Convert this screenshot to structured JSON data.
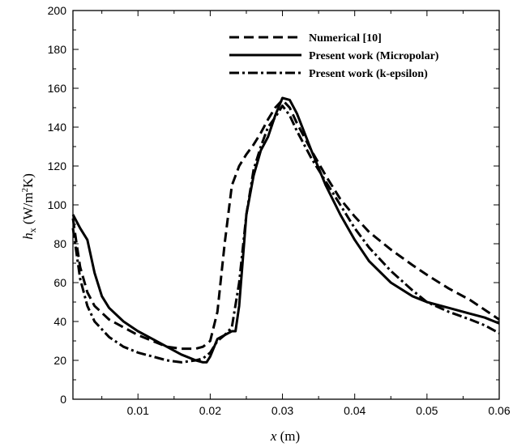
{
  "chart_data": {
    "type": "line",
    "xlabel": {
      "var": "x",
      "unit": " (m)"
    },
    "ylabel": {
      "var": "h",
      "sub": "x",
      "unit_pre": " (W/m",
      "sup": "2",
      "unit_post": "K)"
    },
    "xlim": [
      0.001,
      0.06
    ],
    "ylim": [
      0,
      200
    ],
    "x_ticks": [
      0.01,
      0.02,
      0.03,
      0.04,
      0.05,
      0.06
    ],
    "x_tick_labels": [
      "0.01",
      "0.02",
      "0.03",
      "0.04",
      "0.05",
      "0.06"
    ],
    "y_ticks": [
      0,
      20,
      40,
      60,
      80,
      100,
      120,
      140,
      160,
      180,
      200
    ],
    "y_tick_labels": [
      "0",
      "20",
      "40",
      "60",
      "80",
      "100",
      "120",
      "140",
      "160",
      "180",
      "200"
    ],
    "grid": false,
    "legend_position": "top-right",
    "series": [
      {
        "name": "Numerical [10]",
        "style": "dashed",
        "x": [
          0.001,
          0.0015,
          0.002,
          0.003,
          0.004,
          0.006,
          0.008,
          0.01,
          0.012,
          0.014,
          0.016,
          0.018,
          0.019,
          0.02,
          0.021,
          0.022,
          0.023,
          0.024,
          0.025,
          0.026,
          0.027,
          0.028,
          0.029,
          0.03,
          0.031,
          0.032,
          0.034,
          0.036,
          0.038,
          0.04,
          0.042,
          0.045,
          0.048,
          0.05,
          0.053,
          0.056,
          0.058,
          0.06
        ],
        "y": [
          93,
          80,
          68,
          55,
          48,
          41,
          37,
          33,
          30,
          27,
          26,
          26,
          27,
          30,
          45,
          80,
          110,
          120,
          126,
          131,
          137,
          144,
          150,
          154,
          150,
          142,
          128,
          115,
          103,
          94,
          86,
          77,
          69,
          64,
          57,
          51,
          46,
          41
        ]
      },
      {
        "name": "Present work (Micropolar)",
        "style": "solid",
        "x": [
          0.001,
          0.002,
          0.003,
          0.004,
          0.005,
          0.006,
          0.008,
          0.01,
          0.012,
          0.014,
          0.016,
          0.018,
          0.019,
          0.0195,
          0.02,
          0.021,
          0.022,
          0.023,
          0.0235,
          0.024,
          0.025,
          0.026,
          0.027,
          0.028,
          0.029,
          0.03,
          0.031,
          0.032,
          0.034,
          0.036,
          0.038,
          0.04,
          0.042,
          0.045,
          0.048,
          0.05,
          0.053,
          0.056,
          0.058,
          0.06
        ],
        "y": [
          95,
          88,
          82,
          65,
          53,
          47,
          40,
          35,
          31,
          27,
          23,
          20,
          19,
          19,
          22,
          31,
          33,
          35,
          35,
          48,
          95,
          115,
          128,
          135,
          146,
          155,
          154,
          147,
          128,
          110,
          95,
          82,
          71,
          60,
          53,
          50,
          47,
          44,
          42,
          39
        ]
      },
      {
        "name": "Present work (k-epsilon)",
        "style": "dashdot",
        "x": [
          0.001,
          0.002,
          0.003,
          0.004,
          0.005,
          0.006,
          0.008,
          0.01,
          0.012,
          0.014,
          0.016,
          0.018,
          0.019,
          0.02,
          0.021,
          0.022,
          0.023,
          0.024,
          0.025,
          0.026,
          0.027,
          0.028,
          0.029,
          0.03,
          0.031,
          0.032,
          0.034,
          0.036,
          0.038,
          0.04,
          0.042,
          0.045,
          0.048,
          0.05,
          0.053,
          0.056,
          0.058,
          0.06
        ],
        "y": [
          88,
          62,
          48,
          40,
          36,
          32,
          27,
          24,
          22,
          20,
          19,
          20,
          21,
          24,
          30,
          33,
          37,
          60,
          95,
          118,
          130,
          140,
          145,
          151,
          146,
          138,
          124,
          112,
          100,
          88,
          78,
          66,
          56,
          50,
          45,
          41,
          38,
          34
        ]
      }
    ]
  }
}
